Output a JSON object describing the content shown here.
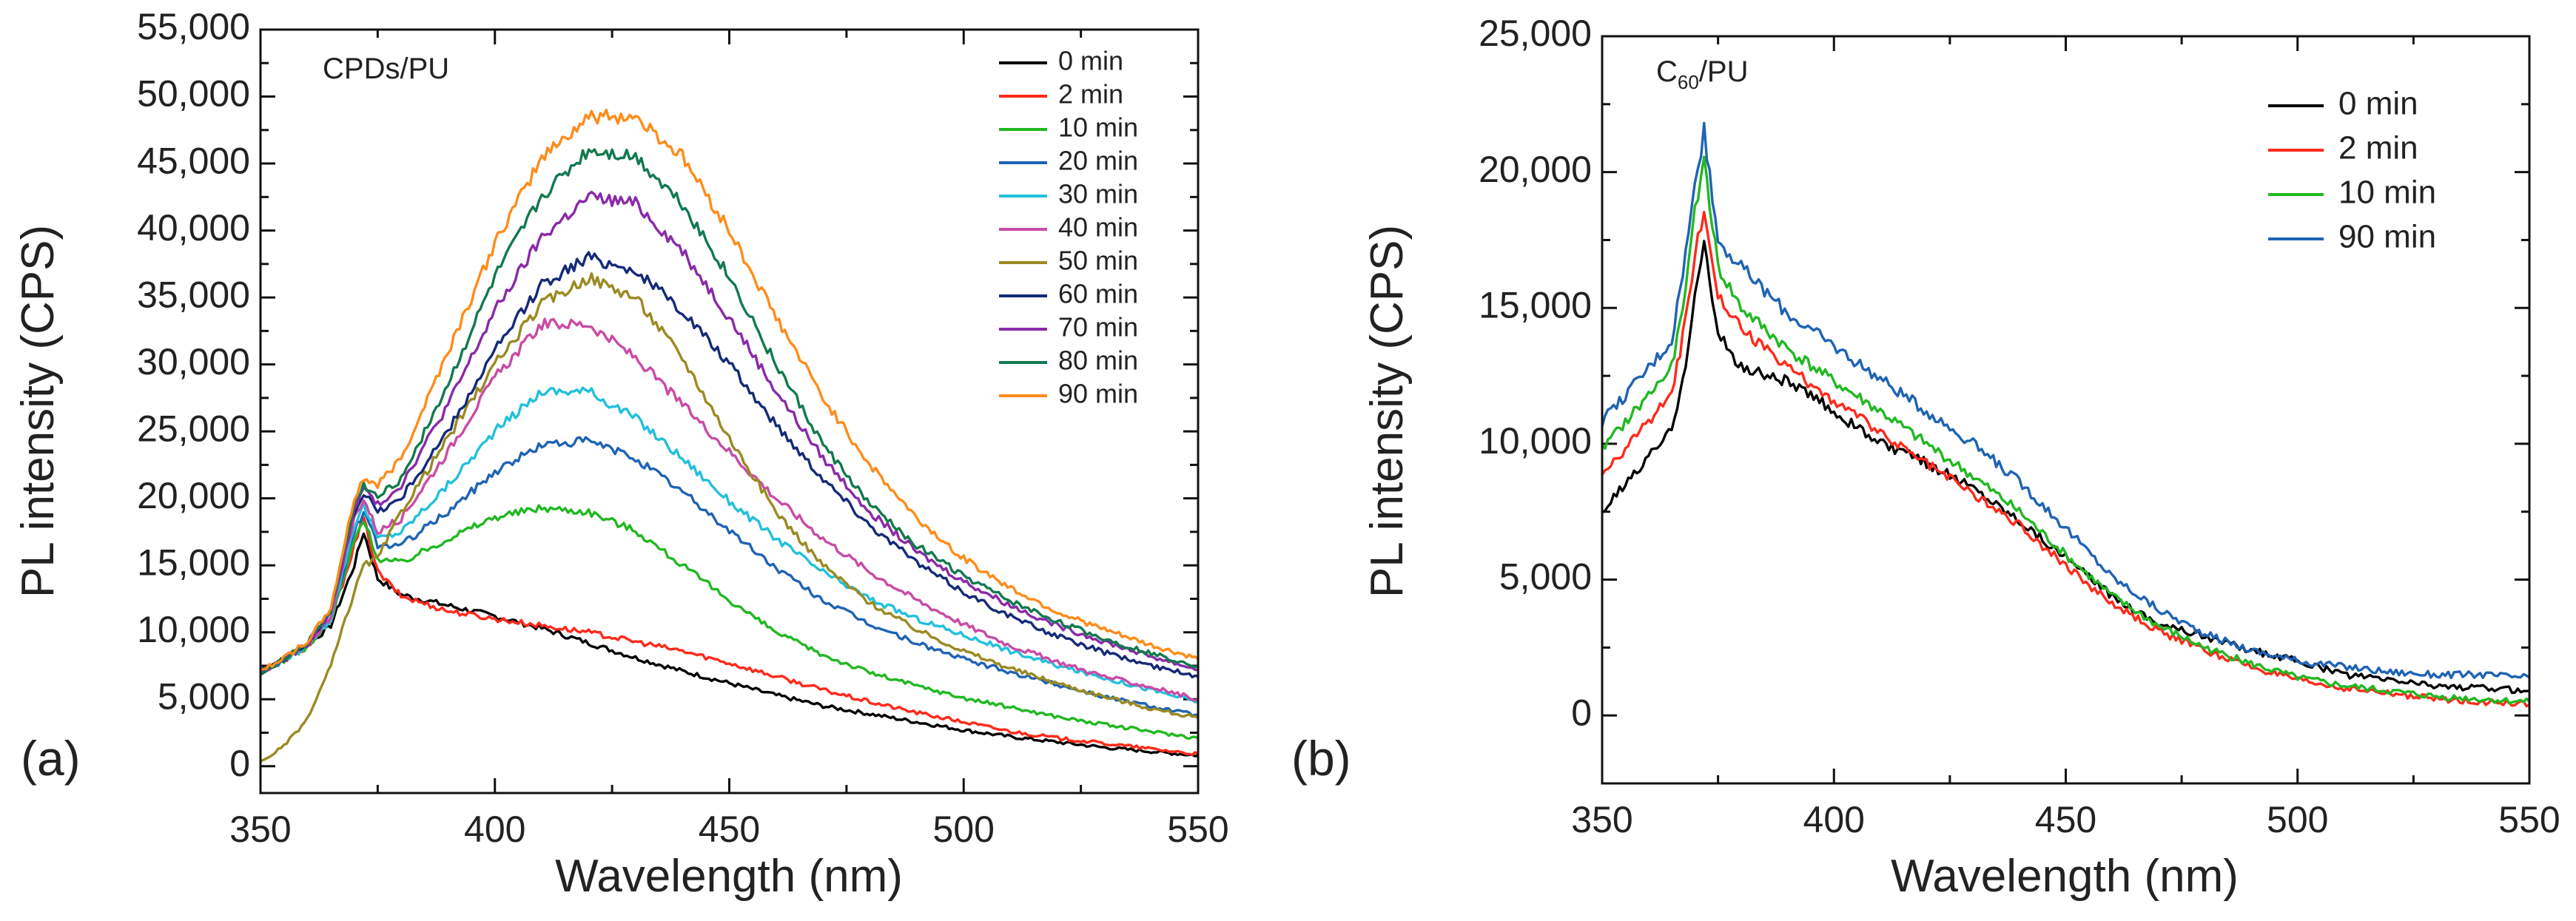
{
  "chart_data": [
    {
      "type": "line",
      "panel_label": "(a)",
      "title": "CPDs/PU",
      "xlabel": "Wavelength (nm)",
      "ylabel": "PL intensity (CPS)",
      "xlim": [
        350,
        550
      ],
      "ylim": [
        -2000,
        55000
      ],
      "x_ticks": [
        350,
        400,
        450,
        500,
        550
      ],
      "x_tick_labels": [
        "350",
        "400",
        "450",
        "500",
        "550"
      ],
      "y_ticks": [
        0,
        5000,
        10000,
        15000,
        20000,
        25000,
        30000,
        35000,
        40000,
        45000,
        50000,
        55000
      ],
      "y_tick_labels": [
        "0",
        "5,000",
        "10,000",
        "15,000",
        "20,000",
        "25,000",
        "30,000",
        "35,000",
        "40,000",
        "45,000",
        "50,000",
        "55,000"
      ],
      "legend_position": "top-right",
      "series": [
        {
          "name": "0 min",
          "color": "#000000",
          "x": [
            350,
            355,
            360,
            365,
            370,
            372,
            375,
            380,
            390,
            400,
            410,
            420,
            430,
            440,
            450,
            460,
            470,
            480,
            490,
            500,
            510,
            520,
            530,
            540,
            550
          ],
          "y": [
            7200,
            8000,
            9000,
            10500,
            15000,
            17500,
            14000,
            12800,
            12000,
            11200,
            10300,
            9200,
            8100,
            7100,
            6200,
            5300,
            4500,
            3900,
            3300,
            2700,
            2200,
            1800,
            1400,
            1100,
            800
          ]
        },
        {
          "name": "2 min",
          "color": "#ff2a1a",
          "x": [
            350,
            355,
            360,
            365,
            370,
            372,
            375,
            380,
            390,
            400,
            410,
            420,
            430,
            440,
            450,
            460,
            470,
            480,
            490,
            500,
            510,
            520,
            530,
            540,
            550
          ],
          "y": [
            7000,
            7900,
            8900,
            10800,
            16500,
            18500,
            14500,
            12700,
            11600,
            11000,
            10500,
            10000,
            9300,
            8600,
            7700,
            6700,
            5700,
            4800,
            4000,
            3300,
            2600,
            2100,
            1700,
            1300,
            900
          ]
        },
        {
          "name": "10 min",
          "color": "#22b822",
          "x": [
            350,
            355,
            360,
            365,
            370,
            372,
            375,
            380,
            390,
            400,
            410,
            420,
            430,
            440,
            450,
            460,
            470,
            480,
            490,
            500,
            510,
            520,
            530,
            540,
            550
          ],
          "y": [
            7000,
            7900,
            8900,
            10800,
            16800,
            18500,
            15500,
            15200,
            17000,
            18600,
            19300,
            19000,
            17600,
            15000,
            12400,
            10000,
            8300,
            7000,
            6000,
            5100,
            4400,
            3700,
            3100,
            2600,
            2100
          ]
        },
        {
          "name": "20 min",
          "color": "#1f63b4",
          "x": [
            350,
            355,
            360,
            365,
            370,
            372,
            375,
            380,
            390,
            400,
            410,
            420,
            430,
            440,
            450,
            460,
            470,
            480,
            490,
            500,
            510,
            520,
            530,
            540,
            550
          ],
          "y": [
            7000,
            7900,
            9000,
            11000,
            17500,
            19000,
            16500,
            16500,
            19000,
            22000,
            24000,
            24300,
            23000,
            20500,
            17600,
            14800,
            12400,
            10600,
            9200,
            8000,
            7000,
            6100,
            5200,
            4500,
            3800
          ]
        },
        {
          "name": "30 min",
          "color": "#22c0dc",
          "x": [
            350,
            355,
            360,
            365,
            370,
            372,
            375,
            380,
            390,
            400,
            410,
            420,
            430,
            440,
            450,
            460,
            470,
            480,
            490,
            500,
            510,
            520,
            530,
            540,
            550
          ],
          "y": [
            7000,
            7900,
            9000,
            11000,
            18000,
            19500,
            17000,
            17500,
            21000,
            25000,
            28000,
            28000,
            26000,
            23000,
            19800,
            17000,
            14500,
            12500,
            11000,
            9800,
            8600,
            7500,
            6600,
            5700,
            4800
          ]
        },
        {
          "name": "40 min",
          "color": "#c94ba6",
          "x": [
            350,
            355,
            360,
            365,
            370,
            372,
            375,
            380,
            390,
            400,
            410,
            420,
            430,
            440,
            450,
            460,
            470,
            480,
            490,
            500,
            510,
            520,
            530,
            540,
            550
          ],
          "y": [
            7000,
            7900,
            9000,
            11200,
            18500,
            20000,
            17500,
            18500,
            23500,
            29000,
            33000,
            33000,
            30500,
            27000,
            23500,
            20000,
            17000,
            14500,
            12400,
            10600,
            9000,
            7800,
            6700,
            5900,
            5000
          ]
        },
        {
          "name": "50 min",
          "color": "#9a8a22",
          "x": [
            350,
            355,
            360,
            365,
            370,
            372,
            375,
            380,
            390,
            400,
            410,
            420,
            430,
            440,
            450,
            460,
            470,
            480,
            490,
            500,
            510,
            520,
            530,
            540,
            550
          ],
          "y": [
            300,
            1500,
            3500,
            7500,
            13000,
            15000,
            15500,
            19000,
            24500,
            30000,
            34500,
            36500,
            35000,
            30500,
            24500,
            19000,
            15000,
            12200,
            10200,
            8600,
            7300,
            6200,
            5200,
            4300,
            3600
          ]
        },
        {
          "name": "60 min",
          "color": "#152a78",
          "x": [
            350,
            355,
            360,
            365,
            370,
            372,
            375,
            380,
            390,
            400,
            410,
            420,
            430,
            440,
            450,
            460,
            470,
            480,
            490,
            500,
            510,
            520,
            530,
            540,
            550
          ],
          "y": [
            7000,
            8000,
            9100,
            11500,
            19000,
            20500,
            19000,
            20000,
            25000,
            31000,
            36000,
            38000,
            37000,
            34000,
            30000,
            25500,
            21500,
            18000,
            15200,
            13000,
            11200,
            9700,
            8500,
            7500,
            6700
          ]
        },
        {
          "name": "70 min",
          "color": "#8a2aa8",
          "x": [
            350,
            355,
            360,
            365,
            370,
            372,
            375,
            380,
            390,
            400,
            410,
            420,
            430,
            440,
            450,
            460,
            470,
            480,
            490,
            500,
            510,
            520,
            530,
            540,
            550
          ],
          "y": [
            7000,
            8000,
            9100,
            11500,
            19000,
            20800,
            19500,
            21000,
            27000,
            34000,
            39500,
            42500,
            42000,
            38500,
            33500,
            28000,
            23000,
            19000,
            16000,
            13800,
            12000,
            10500,
            9300,
            8200,
            7200
          ]
        },
        {
          "name": "80 min",
          "color": "#127a4e",
          "x": [
            350,
            355,
            360,
            365,
            370,
            372,
            375,
            380,
            390,
            400,
            410,
            420,
            430,
            440,
            450,
            460,
            470,
            480,
            490,
            500,
            510,
            520,
            530,
            540,
            550
          ],
          "y": [
            7000,
            8000,
            9200,
            11600,
            19500,
            21000,
            20000,
            21500,
            28500,
            36500,
            42500,
            46000,
            45500,
            42000,
            36500,
            30000,
            24000,
            19500,
            16500,
            14200,
            12300,
            10800,
            9500,
            8400,
            7500
          ]
        },
        {
          "name": "90 min",
          "color": "#ff8c1a",
          "x": [
            350,
            355,
            360,
            365,
            370,
            372,
            375,
            380,
            390,
            400,
            410,
            420,
            430,
            440,
            450,
            460,
            470,
            480,
            490,
            500,
            510,
            520,
            530,
            540,
            550
          ],
          "y": [
            7100,
            8100,
            9300,
            11800,
            20000,
            21500,
            21000,
            23000,
            31000,
            39000,
            45500,
            48500,
            48500,
            45500,
            40000,
            33500,
            27500,
            22500,
            18500,
            15500,
            13300,
            11500,
            10200,
            9000,
            8000
          ]
        }
      ]
    },
    {
      "type": "line",
      "panel_label": "(b)",
      "title_main": "C",
      "title_sub": "60",
      "title_rest": "/PU",
      "xlabel": "Wavelength (nm)",
      "ylabel": "PL intensity (CPS)",
      "xlim": [
        350,
        550
      ],
      "ylim": [
        -2500,
        25000
      ],
      "x_ticks": [
        350,
        400,
        450,
        500,
        550
      ],
      "x_tick_labels": [
        "350",
        "400",
        "450",
        "500",
        "550"
      ],
      "y_ticks": [
        0,
        5000,
        10000,
        15000,
        20000,
        25000
      ],
      "y_tick_labels": [
        "0",
        "5,000",
        "10,000",
        "15,000",
        "20,000",
        "25,000"
      ],
      "legend_position": "top-right",
      "series": [
        {
          "name": "0 min",
          "color": "#000000",
          "x": [
            350,
            355,
            360,
            365,
            368,
            370,
            372,
            375,
            380,
            390,
            400,
            410,
            420,
            430,
            440,
            450,
            460,
            470,
            480,
            490,
            500,
            510,
            520,
            530,
            540,
            550
          ],
          "y": [
            7500,
            8500,
            9500,
            10500,
            13000,
            15500,
            17300,
            14000,
            12800,
            12300,
            11200,
            10000,
            9300,
            8400,
            7200,
            5800,
            4400,
            3400,
            2900,
            2400,
            2000,
            1500,
            1300,
            1100,
            1000,
            900
          ]
        },
        {
          "name": "2 min",
          "color": "#ff2a1a",
          "x": [
            350,
            355,
            360,
            365,
            368,
            370,
            372,
            375,
            380,
            390,
            400,
            410,
            420,
            430,
            440,
            450,
            460,
            470,
            480,
            490,
            500,
            510,
            520,
            530,
            540,
            550
          ],
          "y": [
            8800,
            9800,
            10800,
            11800,
            14500,
            17000,
            18700,
            15500,
            14200,
            12800,
            11600,
            10400,
            9300,
            8200,
            7000,
            5500,
            4100,
            3100,
            2400,
            1800,
            1300,
            1000,
            800,
            600,
            500,
            400
          ]
        },
        {
          "name": "10 min",
          "color": "#22b822",
          "x": [
            350,
            355,
            360,
            365,
            368,
            370,
            372,
            375,
            380,
            390,
            400,
            410,
            420,
            430,
            440,
            450,
            460,
            470,
            480,
            490,
            500,
            510,
            520,
            530,
            540,
            550
          ],
          "y": [
            9800,
            10800,
            11800,
            12800,
            15500,
            18500,
            20500,
            16500,
            15000,
            13500,
            12300,
            11200,
            10000,
            8800,
            7500,
            5900,
            4400,
            3300,
            2500,
            1900,
            1400,
            1100,
            900,
            700,
            600,
            500
          ]
        },
        {
          "name": "90 min",
          "color": "#1f63b4",
          "x": [
            350,
            355,
            360,
            365,
            368,
            370,
            372,
            375,
            380,
            390,
            400,
            410,
            420,
            430,
            440,
            450,
            460,
            470,
            480,
            490,
            500,
            510,
            520,
            530,
            540,
            550
          ],
          "y": [
            10800,
            11800,
            12800,
            13800,
            17000,
            19500,
            21500,
            17500,
            16500,
            14800,
            13600,
            12400,
            11200,
            10000,
            8600,
            6900,
            5100,
            3900,
            3000,
            2400,
            2000,
            1800,
            1600,
            1500,
            1500,
            1400
          ]
        }
      ]
    }
  ]
}
